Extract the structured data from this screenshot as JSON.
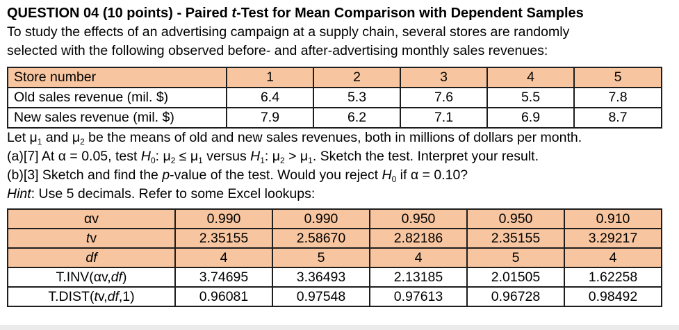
{
  "colors": {
    "header_fill": "#F7C59F",
    "border": "#1d1d1d",
    "bottom_strip": "#ebebeb"
  },
  "title_segments": [
    {
      "t": "QUESTION 04 (10 points) - Paired ",
      "b": true
    },
    {
      "t": "t",
      "b": true,
      "i": true
    },
    {
      "t": "-Test for Mean Comparison with Dependent Samples",
      "b": true
    }
  ],
  "intro": [
    "To study the effects of an advertising campaign at a supply chain, several stores are randomly",
    "selected with the following observed before- and after-advertising monthly sales revenues:"
  ],
  "sales_table": {
    "header": [
      "Store number",
      "1",
      "2",
      "3",
      "4",
      "5"
    ],
    "rows": [
      [
        "Old sales revenue (mil. $)",
        "6.4",
        "5.3",
        "7.6",
        "5.5",
        "7.8"
      ],
      [
        "New sales revenue (mil. $)",
        "7.9",
        "6.2",
        "7.1",
        "6.9",
        "8.7"
      ]
    ]
  },
  "body": {
    "line_means": [
      {
        "t": "Let μ"
      },
      {
        "t": "1",
        "sub": true
      },
      {
        "t": " and μ"
      },
      {
        "t": "2",
        "sub": true
      },
      {
        "t": " be the means of old and new sales revenues, both in millions of dollars per month."
      }
    ],
    "line_a": [
      {
        "t": "(a)[7] At α = 0.05, test "
      },
      {
        "t": "H",
        "i": true
      },
      {
        "t": "0",
        "sub": true
      },
      {
        "t": ": μ"
      },
      {
        "t": "2",
        "sub": true
      },
      {
        "t": " ≤ μ"
      },
      {
        "t": "1",
        "sub": true
      },
      {
        "t": " versus "
      },
      {
        "t": "H",
        "i": true
      },
      {
        "t": "1",
        "sub": true
      },
      {
        "t": ": μ"
      },
      {
        "t": "2",
        "sub": true
      },
      {
        "t": " > μ"
      },
      {
        "t": "1",
        "sub": true
      },
      {
        "t": ". Sketch the test. Interpret your result."
      }
    ],
    "line_b": [
      {
        "t": "(b)[3] Sketch and find the "
      },
      {
        "t": "p",
        "i": true
      },
      {
        "t": "-value of the test. Would you reject "
      },
      {
        "t": "H",
        "i": true
      },
      {
        "t": "0",
        "sub": true
      },
      {
        "t": " if α = 0.10?"
      }
    ],
    "line_hint": [
      {
        "t": "Hint",
        "i": true
      },
      {
        "t": ": Use 5 decimals. Refer to some Excel lookups:"
      }
    ]
  },
  "lookup_table": {
    "rows": [
      {
        "fill": "header",
        "label_segments": [
          {
            "t": "αv"
          }
        ],
        "values": [
          "0.990",
          "0.990",
          "0.950",
          "0.950",
          "0.910"
        ]
      },
      {
        "fill": "header",
        "label_segments": [
          {
            "t": "t",
            "i": true
          },
          {
            "t": "v"
          }
        ],
        "values": [
          "2.35155",
          "2.58670",
          "2.82186",
          "2.35155",
          "3.29217"
        ]
      },
      {
        "fill": "header",
        "label_segments": [
          {
            "t": "df",
            "i": true
          }
        ],
        "values": [
          "4",
          "5",
          "4",
          "5",
          "4"
        ]
      },
      {
        "fill": "white",
        "label_segments": [
          {
            "t": "T.INV(αv,"
          },
          {
            "t": "df",
            "i": true
          },
          {
            "t": ")"
          }
        ],
        "values": [
          "3.74695",
          "3.36493",
          "2.13185",
          "2.01505",
          "1.62258"
        ]
      },
      {
        "fill": "white",
        "label_segments": [
          {
            "t": "T.DIST("
          },
          {
            "t": "t",
            "i": true
          },
          {
            "t": "v,"
          },
          {
            "t": "df",
            "i": true
          },
          {
            "t": ",1)"
          }
        ],
        "values": [
          "0.96081",
          "0.97548",
          "0.97613",
          "0.96728",
          "0.98492"
        ]
      }
    ]
  }
}
